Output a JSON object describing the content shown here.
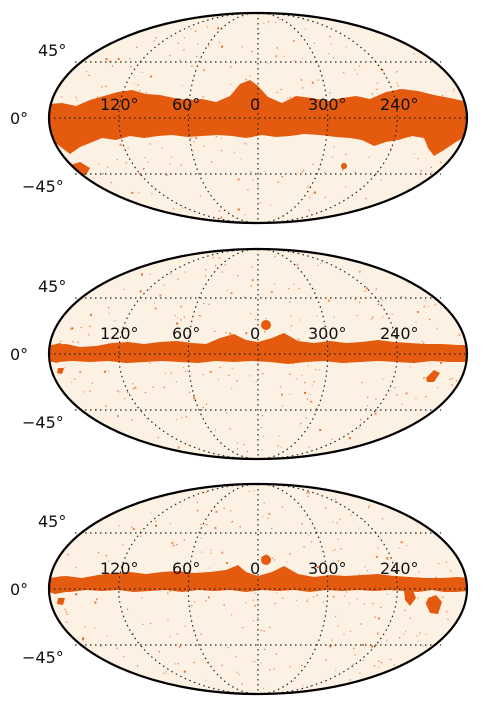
{
  "colors": {
    "background": "#fdf1e3",
    "mask": "#e45a0e",
    "grid": "#222222",
    "outline": "#000000"
  },
  "labels": {
    "lat_north": "45°",
    "lat_equator": "0°",
    "lat_south": "−45°",
    "lon_120": "120°",
    "lon_60": "60°",
    "lon_0": "0",
    "lon_300": "300°",
    "lon_240": "240°"
  },
  "panels": [
    {
      "projection": "mollweide",
      "masked_region": "galactic-plane-wide"
    },
    {
      "projection": "mollweide",
      "masked_region": "galactic-plane-medium"
    },
    {
      "projection": "mollweide",
      "masked_region": "galactic-plane-medium"
    }
  ]
}
